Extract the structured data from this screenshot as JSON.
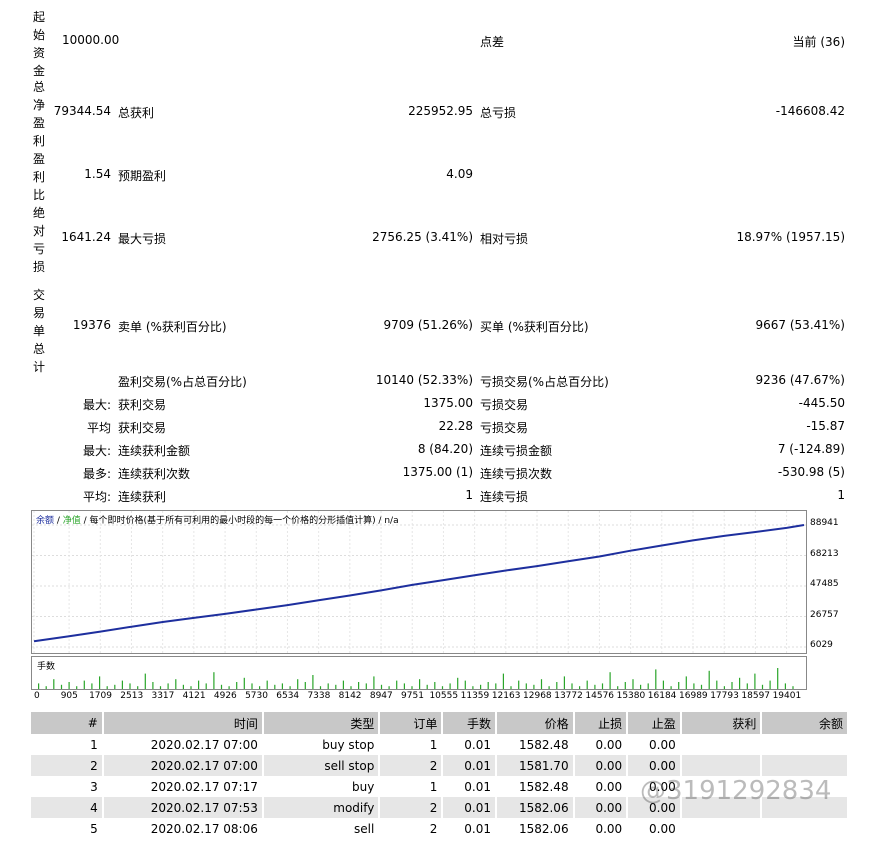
{
  "summary": {
    "initial_deposit_label": "起始资金",
    "initial_deposit": "10000.00",
    "spread_label": "点差",
    "spread": "当前 (36)",
    "net_profit_label": "总净盈利",
    "net_profit": "79344.54",
    "gross_profit_label": "总获利",
    "gross_profit": "225952.95",
    "gross_loss_label": "总亏损",
    "gross_loss": "-146608.42",
    "profit_factor_label": "盈利比",
    "profit_factor": "1.54",
    "expected_payoff_label": "预期盈利",
    "expected_payoff": "4.09",
    "abs_drawdown_label": "绝对亏损",
    "abs_drawdown": "1641.24",
    "max_drawdown_label": "最大亏损",
    "max_drawdown": "2756.25 (3.41%)",
    "rel_drawdown_label": "相对亏损",
    "rel_drawdown": "18.97% (1957.15)",
    "total_trades_label": "交易单总计",
    "total_trades": "19376",
    "short_label": "卖单 (%获利百分比)",
    "short": "9709 (51.26%)",
    "long_label": "买单 (%获利百分比)",
    "long": "9667 (53.41%)",
    "profit_trades_label": "盈利交易(%占总百分比)",
    "profit_trades": "10140 (52.33%)",
    "loss_trades_label": "亏损交易(%占总百分比)",
    "loss_trades": "9236 (47.67%)",
    "largest_prefix": "最大:",
    "largest_profit_label": "获利交易",
    "largest_profit": "1375.00",
    "largest_loss_label": "亏损交易",
    "largest_loss": "-445.50",
    "average_prefix": "平均",
    "avg_profit_label": "获利交易",
    "avg_profit": "22.28",
    "avg_loss_label": "亏损交易",
    "avg_loss": "-15.87",
    "max_prefix": "最大:",
    "max_cons_profit_label": "连续获利金额",
    "max_cons_profit": "8 (84.20)",
    "max_cons_loss_label": "连续亏损金额",
    "max_cons_loss": "7 (-124.89)",
    "most_prefix": "最多:",
    "most_cons_profit_label": "连续获利次数",
    "most_cons_profit": "1375.00 (1)",
    "most_cons_loss_label": "连续亏损次数",
    "most_cons_loss": "-530.98 (5)",
    "avg2_prefix": "平均:",
    "avg_cons_win_label": "连续获利",
    "avg_cons_win": "1",
    "avg_cons_loss_label": "连续亏损",
    "avg_cons_loss": "1"
  },
  "chart_legend": {
    "balance": "余额",
    "sep1": " / ",
    "equity": "净值",
    "rest": " / 每个即时价格(基于所有可利用的最小时段的每一个价格的分形插值计算) / n/a"
  },
  "volume_label": "手数",
  "colors": {
    "balance": "#1e2f9e",
    "volume": "#2aa52a"
  },
  "chart_data": {
    "type": "line",
    "y_ticks": [
      "88941",
      "68213",
      "47485",
      "26757",
      "6029"
    ],
    "x_ticks": [
      "0",
      "905",
      "1709",
      "2513",
      "3317",
      "4121",
      "4926",
      "5730",
      "6534",
      "7338",
      "8142",
      "8947",
      "9751",
      "10555",
      "11359",
      "12163",
      "12968",
      "13772",
      "14576",
      "15380",
      "16184",
      "16989",
      "17793",
      "18597",
      "19401"
    ],
    "ylim": [
      6029,
      88941
    ],
    "xlim": [
      0,
      19850
    ],
    "series": [
      {
        "x": [
          0,
          905,
          1709,
          2513,
          3317,
          4121,
          4926,
          5730,
          6534,
          7338,
          8142,
          8947,
          9751,
          10555,
          11359,
          12163,
          12968,
          13772,
          14576,
          15380,
          16184,
          16989,
          17793,
          18597,
          19401,
          19850
        ],
        "values": [
          10000,
          13300,
          16500,
          19800,
          23000,
          25800,
          28500,
          31500,
          34500,
          37800,
          41000,
          44500,
          48200,
          51500,
          54800,
          58000,
          61000,
          64300,
          67500,
          71500,
          75000,
          78500,
          81500,
          84200,
          87000,
          88941
        ]
      }
    ]
  },
  "volume_bars": [
    0.2,
    0.1,
    0.35,
    0.15,
    0.25,
    0.1,
    0.3,
    0.2,
    0.45,
    0.1,
    0.15,
    0.3,
    0.2,
    0.1,
    0.55,
    0.25,
    0.1,
    0.2,
    0.35,
    0.15,
    0.1,
    0.3,
    0.2,
    0.6,
    0.15,
    0.1,
    0.25,
    0.4,
    0.2,
    0.1,
    0.3,
    0.15,
    0.2,
    0.1,
    0.35,
    0.25,
    0.5,
    0.1,
    0.2,
    0.15,
    0.3,
    0.1,
    0.25,
    0.2,
    0.45,
    0.15,
    0.1,
    0.3,
    0.2,
    0.1,
    0.35,
    0.15,
    0.25,
    0.1,
    0.2,
    0.4,
    0.3,
    0.1,
    0.15,
    0.25,
    0.2,
    0.55,
    0.1,
    0.3,
    0.2,
    0.15,
    0.35,
    0.1,
    0.25,
    0.45,
    0.2,
    0.1,
    0.3,
    0.15,
    0.2,
    0.6,
    0.1,
    0.25,
    0.35,
    0.15,
    0.2,
    0.7,
    0.3,
    0.1,
    0.25,
    0.45,
    0.2,
    0.15,
    0.65,
    0.3,
    0.1,
    0.25,
    0.4,
    0.2,
    0.55,
    0.15,
    0.3,
    0.75,
    0.2,
    0.1
  ],
  "table": {
    "headers": [
      "#",
      "时间",
      "类型",
      "订单",
      "手数",
      "价格",
      "止损",
      "止盈",
      "获利",
      "余额"
    ],
    "rows": [
      [
        "1",
        "2020.02.17 07:00",
        "buy stop",
        "1",
        "0.01",
        "1582.48",
        "0.00",
        "0.00",
        "",
        ""
      ],
      [
        "2",
        "2020.02.17 07:00",
        "sell stop",
        "2",
        "0.01",
        "1581.70",
        "0.00",
        "0.00",
        "",
        ""
      ],
      [
        "3",
        "2020.02.17 07:17",
        "buy",
        "1",
        "0.01",
        "1582.48",
        "0.00",
        "0.00",
        "",
        ""
      ],
      [
        "4",
        "2020.02.17 07:53",
        "modify",
        "2",
        "0.01",
        "1582.06",
        "0.00",
        "0.00",
        "",
        ""
      ],
      [
        "5",
        "2020.02.17 08:06",
        "sell",
        "2",
        "0.01",
        "1582.06",
        "0.00",
        "0.00",
        "",
        ""
      ]
    ]
  },
  "watermark": "@3191292834"
}
